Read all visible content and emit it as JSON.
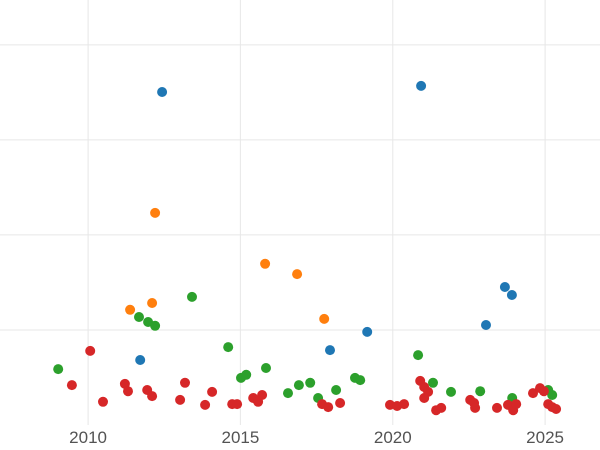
{
  "figure": {
    "background": "#ffffff",
    "grid_color": "#e7e7e7",
    "tick_color": "#535353",
    "tick_font_size": 17
  },
  "chart_data": {
    "type": "scatter",
    "title": "",
    "xlabel": "",
    "ylabel": "",
    "legend_position": "none",
    "grid": true,
    "xlim": [
      2007.11,
      2026.8
    ],
    "ylim": [
      0,
      111.8
    ],
    "x_ticks": [
      {
        "value": 2010,
        "label": "2010"
      },
      {
        "value": 2015,
        "label": "2015"
      },
      {
        "value": 2020,
        "label": "2020"
      },
      {
        "value": 2025,
        "label": "2025"
      }
    ],
    "y_gridlines": [
      25,
      50,
      75,
      100
    ],
    "marker_radius": 5,
    "series": [
      {
        "name": "blue",
        "color": "#1f77b4",
        "points": [
          [
            2012.43,
            87.6
          ],
          [
            2020.93,
            89.2
          ],
          [
            2011.71,
            17.1
          ],
          [
            2017.94,
            19.7
          ],
          [
            2019.16,
            24.5
          ],
          [
            2023.06,
            26.3
          ],
          [
            2023.68,
            36.3
          ],
          [
            2023.91,
            34.2
          ]
        ]
      },
      {
        "name": "orange",
        "color": "#ff7f0e",
        "points": [
          [
            2012.2,
            55.8
          ],
          [
            2011.38,
            30.3
          ],
          [
            2012.1,
            32.1
          ],
          [
            2015.81,
            42.4
          ],
          [
            2016.86,
            39.7
          ],
          [
            2017.75,
            27.9
          ]
        ]
      },
      {
        "name": "green",
        "color": "#2ca02c",
        "points": [
          [
            2009.02,
            14.7
          ],
          [
            2013.41,
            33.7
          ],
          [
            2011.67,
            28.4
          ],
          [
            2011.97,
            27.1
          ],
          [
            2012.2,
            26.1
          ],
          [
            2014.6,
            20.5
          ],
          [
            2015.02,
            12.4
          ],
          [
            2015.19,
            13.2
          ],
          [
            2015.84,
            15.0
          ],
          [
            2016.56,
            8.4
          ],
          [
            2016.92,
            10.5
          ],
          [
            2017.29,
            11.1
          ],
          [
            2017.55,
            7.1
          ],
          [
            2018.14,
            9.2
          ],
          [
            2018.76,
            12.4
          ],
          [
            2018.93,
            11.8
          ],
          [
            2020.83,
            18.4
          ],
          [
            2021.32,
            11.1
          ],
          [
            2021.91,
            8.7
          ],
          [
            2022.87,
            8.9
          ],
          [
            2023.92,
            7.1
          ],
          [
            2025.1,
            9.2
          ],
          [
            2025.23,
            7.9
          ]
        ]
      },
      {
        "name": "red",
        "color": "#d62728",
        "points": [
          [
            2010.07,
            19.5
          ],
          [
            2009.47,
            10.5
          ],
          [
            2010.49,
            6.1
          ],
          [
            2011.21,
            10.8
          ],
          [
            2011.31,
            8.9
          ],
          [
            2011.94,
            9.2
          ],
          [
            2012.1,
            7.6
          ],
          [
            2013.02,
            6.6
          ],
          [
            2013.18,
            11.1
          ],
          [
            2013.84,
            5.3
          ],
          [
            2014.07,
            8.7
          ],
          [
            2014.73,
            5.5
          ],
          [
            2014.89,
            5.5
          ],
          [
            2015.42,
            7.1
          ],
          [
            2015.58,
            6.1
          ],
          [
            2015.71,
            7.9
          ],
          [
            2017.68,
            5.5
          ],
          [
            2017.88,
            4.7
          ],
          [
            2018.27,
            5.8
          ],
          [
            2019.91,
            5.3
          ],
          [
            2020.14,
            5.0
          ],
          [
            2020.37,
            5.5
          ],
          [
            2020.9,
            11.6
          ],
          [
            2021.03,
            10.0
          ],
          [
            2021.16,
            8.7
          ],
          [
            2021.03,
            7.1
          ],
          [
            2021.42,
            3.9
          ],
          [
            2021.59,
            4.5
          ],
          [
            2022.54,
            6.6
          ],
          [
            2022.67,
            5.8
          ],
          [
            2022.7,
            4.5
          ],
          [
            2023.42,
            4.5
          ],
          [
            2023.78,
            5.3
          ],
          [
            2023.95,
            3.9
          ],
          [
            2024.05,
            5.5
          ],
          [
            2024.6,
            8.4
          ],
          [
            2024.83,
            9.7
          ],
          [
            2024.96,
            8.9
          ],
          [
            2025.1,
            5.5
          ],
          [
            2025.23,
            4.7
          ],
          [
            2025.36,
            4.2
          ]
        ]
      }
    ]
  }
}
